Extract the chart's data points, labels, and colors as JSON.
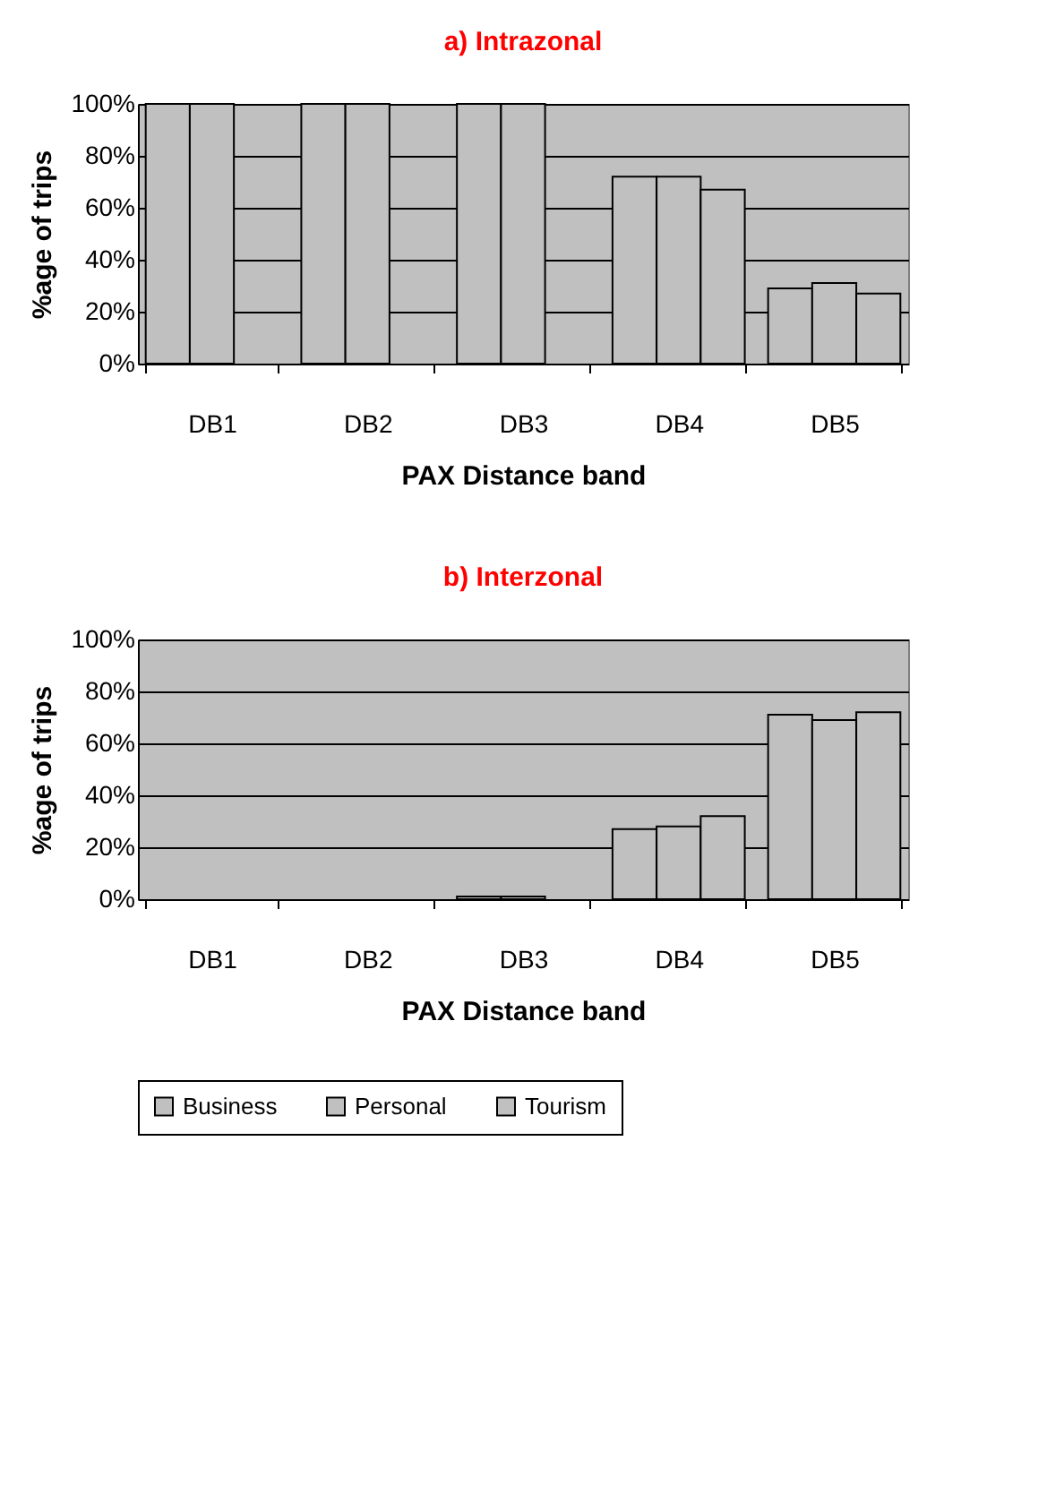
{
  "chart_data": [
    {
      "type": "bar",
      "title": "a) Intrazonal",
      "xlabel": "PAX Distance band",
      "ylabel": "%age of trips",
      "categories": [
        "DB1",
        "DB2",
        "DB3",
        "DB4",
        "DB5"
      ],
      "series": [
        {
          "name": "Business",
          "color": "#c0c0c0",
          "values": [
            100,
            100,
            100,
            72,
            29
          ]
        },
        {
          "name": "Personal",
          "color": "#c0c0c0",
          "values": [
            100,
            100,
            100,
            72,
            31
          ]
        },
        {
          "name": "Tourism",
          "color": "#c0c0c0",
          "values": [
            null,
            null,
            null,
            67,
            27
          ]
        }
      ],
      "ylim": [
        0,
        100
      ],
      "yticks": [
        {
          "value": 0,
          "label": "0%"
        },
        {
          "value": 20,
          "label": "20%"
        },
        {
          "value": 40,
          "label": "40%"
        },
        {
          "value": 60,
          "label": "60%"
        },
        {
          "value": 80,
          "label": "80%"
        },
        {
          "value": 100,
          "label": "100%"
        }
      ],
      "grid": "y",
      "legend": "bottom"
    },
    {
      "type": "bar",
      "title": "b) Interzonal",
      "xlabel": "PAX Distance band",
      "ylabel": "%age of trips",
      "categories": [
        "DB1",
        "DB2",
        "DB3",
        "DB4",
        "DB5"
      ],
      "series": [
        {
          "name": "Business",
          "color": "#c0c0c0",
          "values": [
            0,
            0,
            1,
            27,
            71
          ]
        },
        {
          "name": "Personal",
          "color": "#c0c0c0",
          "values": [
            0,
            0,
            1,
            28,
            69
          ]
        },
        {
          "name": "Tourism",
          "color": "#c0c0c0",
          "values": [
            null,
            null,
            null,
            32,
            72
          ]
        }
      ],
      "ylim": [
        0,
        100
      ],
      "yticks": [
        {
          "value": 0,
          "label": "0%"
        },
        {
          "value": 20,
          "label": "20%"
        },
        {
          "value": 40,
          "label": "40%"
        },
        {
          "value": 60,
          "label": "60%"
        },
        {
          "value": 80,
          "label": "80%"
        },
        {
          "value": 100,
          "label": "100%"
        }
      ],
      "grid": "y",
      "legend": "bottom"
    }
  ]
}
